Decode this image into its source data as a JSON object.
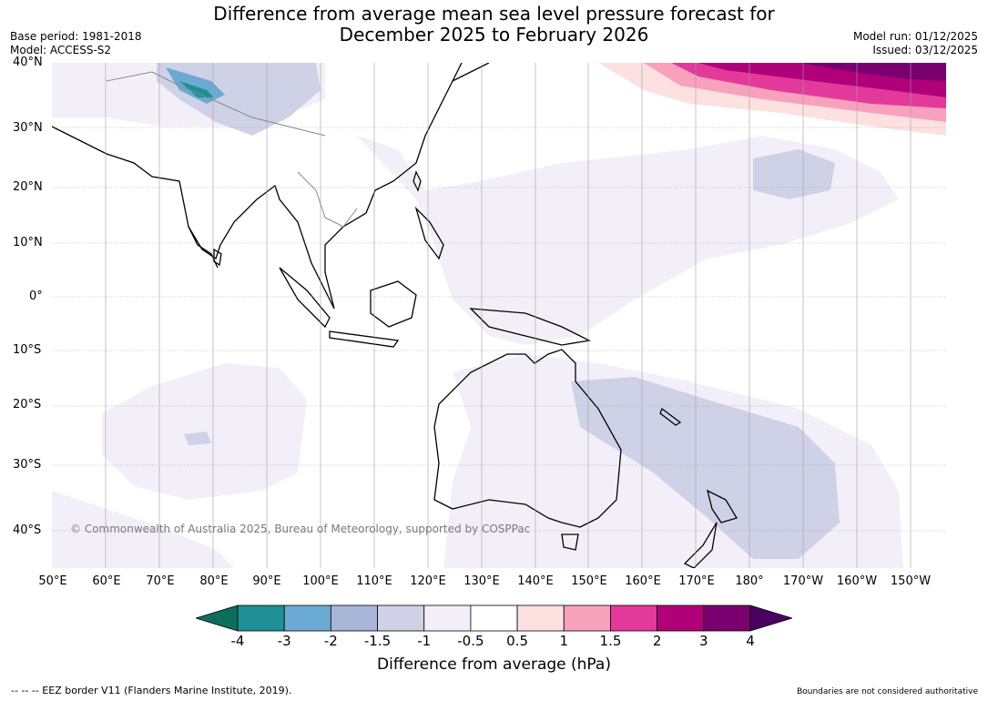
{
  "title_line1": "Difference from average mean sea level pressure forecast for",
  "title_line2": "December 2025 to February 2026",
  "meta_left": [
    "Base period: 1981-2018",
    "Model: ACCESS-S2"
  ],
  "meta_right": [
    "Model run: 01/12/2025",
    "Issued: 03/12/2025"
  ],
  "lat_labels": [
    "40°N",
    "30°N",
    "20°N",
    "10°N",
    "0°",
    "10°S",
    "20°S",
    "30°S",
    "40°S"
  ],
  "lon_labels": [
    "50°E",
    "60°E",
    "70°E",
    "80°E",
    "90°E",
    "100°E",
    "110°E",
    "120°E",
    "130°E",
    "140°E",
    "150°E",
    "160°E",
    "170°E",
    "180°",
    "170°W",
    "160°W",
    "150°W"
  ],
  "copyright": "© Commonwealth of Australia 2025, Bureau of Meteorology, supported by COSPPac",
  "colorbar": {
    "ticks": [
      "-4",
      "-3",
      "-2",
      "-1.5",
      "-1",
      "-0.5",
      "0.5",
      "1",
      "1.5",
      "2",
      "3",
      "4"
    ],
    "colors": [
      "#0e6e5e",
      "#1f9095",
      "#6aaad3",
      "#a8b7d7",
      "#cfd2e6",
      "#f3eff8",
      "#ffffff",
      "#fde0e0",
      "#f7a1bd",
      "#e3399a",
      "#b0007a",
      "#7a0070",
      "#4a0060"
    ],
    "label": "Difference from average (hPa)"
  },
  "footer_left": "--  --  -- EEZ border V11 (Flanders Marine Institute, 2019).",
  "footer_right": "Boundaries are not considered authoritative"
}
